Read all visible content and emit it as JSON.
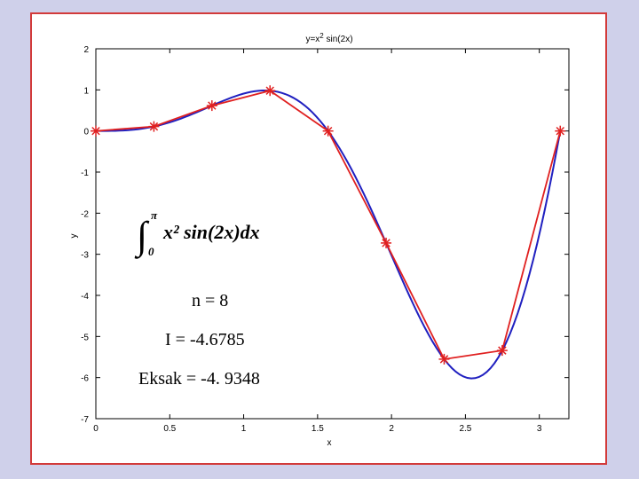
{
  "chart_data": {
    "type": "line",
    "title": "y=x² sin(2x)",
    "title_base": "y=x",
    "title_sup": "2",
    "title_rest": " sin(2x)",
    "xlabel": "x",
    "ylabel": "y",
    "xlim": [
      0,
      3.2
    ],
    "ylim": [
      -7,
      2
    ],
    "x_ticks": [
      "0",
      "0.5",
      "1",
      "1.5",
      "2",
      "2.5",
      "3"
    ],
    "y_ticks": [
      "2",
      "1",
      "0",
      "-1",
      "-2",
      "-3",
      "-4",
      "-5",
      "-6",
      "-7"
    ],
    "grid": false,
    "series": [
      {
        "kind": "curve",
        "function": "x^2 sin(2x)",
        "color": "#2020c0",
        "x": [
          0,
          0.2,
          0.4,
          0.6,
          0.8,
          1.0,
          1.2,
          1.4,
          1.6,
          1.8,
          2.0,
          2.2,
          2.4,
          2.6,
          2.8,
          3.0,
          3.1416
        ],
        "y": [
          0,
          0.0156,
          0.1148,
          0.3355,
          0.6388,
          0.9093,
          0.9717,
          0.6566,
          -0.1495,
          -1.4333,
          -3.0272,
          -4.6775,
          -5.7034,
          -5.9592,
          -5.0123,
          -2.5147,
          0
        ]
      },
      {
        "kind": "trapezoid",
        "color": "#e02020",
        "marker": "*",
        "x": [
          0,
          0.3927,
          0.7854,
          1.1781,
          1.5708,
          1.9635,
          2.3562,
          2.7489,
          3.1416
        ],
        "y": [
          0,
          0.109,
          0.6169,
          0.981,
          0,
          -2.7252,
          -5.5517,
          -5.3405,
          0
        ]
      }
    ]
  },
  "annotations": {
    "integral_limit_upper": "π",
    "integral_limit_lower": "0",
    "integral_expr": "x² sin(2x)dx",
    "n_text": "n = 8",
    "approx_text": "I = -4.6785",
    "exact_text": "Eksak = -4. 9348"
  },
  "colors": {
    "frame_border": "#d23a3a",
    "background": "#cfd0ea"
  }
}
